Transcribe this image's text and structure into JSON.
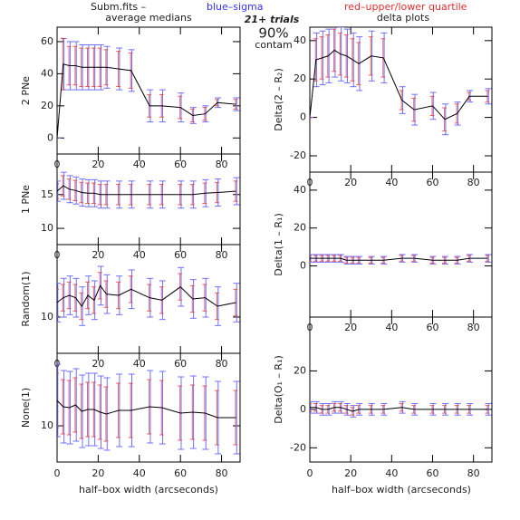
{
  "header": {
    "file": "Subm.fits  –",
    "blue": "blue–sigma",
    "red": "red–upper/lower quartile",
    "left_title": "average medians",
    "right_title": "delta plots",
    "trials": "21+ trials",
    "percent": "90%",
    "contam": "contam",
    "xlabel": "half–box width (arcseconds)"
  },
  "chart_data": [
    {
      "type": "line",
      "ylabel": "2 PNe",
      "x": [
        0,
        3,
        6,
        9,
        12,
        15,
        18,
        21,
        24,
        30,
        36,
        45,
        51,
        60,
        66,
        72,
        78,
        87
      ],
      "values": [
        0,
        46,
        45,
        45,
        44,
        44,
        44,
        44,
        44,
        43,
        42,
        20,
        20,
        19,
        14,
        15,
        22,
        21
      ],
      "sigma": [
        0,
        16,
        15,
        15,
        14,
        14,
        14,
        14,
        13,
        13,
        13,
        10,
        10,
        9,
        5,
        5,
        3,
        4
      ],
      "quartile": [
        0,
        16,
        12,
        12,
        12,
        12,
        12,
        12,
        11,
        11,
        11,
        7,
        7,
        7,
        4,
        4,
        2,
        3
      ],
      "xlim": [
        0,
        89
      ],
      "xticks": [
        0,
        20,
        40,
        60,
        80
      ],
      "ylim": [
        -10,
        69
      ],
      "yticks": [
        0,
        20,
        40,
        60
      ],
      "color": "#000000",
      "sigma_color": "#7070ff",
      "quartile_color": "#e04040"
    },
    {
      "type": "line",
      "ylabel": "1 PNe",
      "x": [
        0,
        3,
        6,
        9,
        12,
        15,
        18,
        21,
        24,
        30,
        36,
        45,
        51,
        60,
        66,
        72,
        78,
        87
      ],
      "values": [
        15.5,
        16.3,
        15.8,
        15.6,
        15.3,
        15.2,
        15.2,
        15.0,
        15.0,
        15.0,
        15.0,
        15.0,
        15.0,
        15.0,
        15.0,
        15.2,
        15.3,
        15.5
      ],
      "sigma": [
        1.5,
        2,
        2,
        2,
        2,
        2,
        2,
        2,
        2,
        2,
        2,
        2,
        2,
        2,
        2,
        2,
        2,
        2
      ],
      "quartile": [
        1.1,
        1.5,
        1.5,
        1.5,
        1.5,
        1.5,
        1.5,
        1.5,
        1.5,
        1.5,
        1.5,
        1.5,
        1.5,
        1.5,
        1.5,
        1.5,
        1.5,
        1.5
      ],
      "xlim": [
        0,
        89
      ],
      "xticks": [
        0,
        20,
        40,
        60,
        80
      ],
      "ylim": [
        7.6,
        21
      ],
      "yticks": [
        10,
        15
      ],
      "color": "#000000",
      "sigma_color": "#7070ff",
      "quartile_color": "#e04040"
    },
    {
      "type": "line",
      "ylabel": "Random(1)",
      "x": [
        0,
        3,
        6,
        9,
        12,
        15,
        18,
        21,
        24,
        30,
        36,
        45,
        51,
        60,
        66,
        72,
        78,
        87
      ],
      "values": [
        11.2,
        11.6,
        11.8,
        11.6,
        10.9,
        11.8,
        11.4,
        12.6,
        11.9,
        11.8,
        12.3,
        11.6,
        11.4,
        12.5,
        11.5,
        11.6,
        10.9,
        11.2
      ],
      "sigma": [
        1.6,
        1.6,
        1.6,
        1.6,
        1.6,
        1.6,
        1.6,
        1.6,
        1.6,
        1.6,
        1.6,
        1.6,
        1.6,
        1.6,
        1.6,
        1.6,
        1.6,
        1.6
      ],
      "quartile": [
        1.1,
        1.1,
        1.1,
        1.1,
        1.1,
        1.1,
        1.1,
        1.1,
        1.1,
        1.1,
        1.1,
        1.1,
        1.1,
        1.1,
        1.1,
        1.1,
        1.1,
        1.1
      ],
      "xlim": [
        0,
        89
      ],
      "xticks": [
        0,
        20,
        40,
        60,
        80
      ],
      "ylim": [
        7,
        16
      ],
      "yticks": [
        10
      ],
      "color": "#000000",
      "sigma_color": "#7070ff",
      "quartile_color": "#e04040"
    },
    {
      "type": "line",
      "ylabel": "None(1)",
      "x": [
        0,
        3,
        6,
        9,
        12,
        15,
        18,
        21,
        24,
        30,
        36,
        45,
        51,
        60,
        66,
        72,
        78,
        87
      ],
      "values": [
        12.8,
        12.1,
        12.0,
        12.3,
        11.6,
        11.8,
        11.8,
        11.5,
        11.3,
        11.7,
        11.7,
        12.1,
        12.0,
        11.4,
        11.5,
        11.4,
        10.9,
        10.9
      ],
      "sigma": [
        4,
        4,
        4,
        4,
        4,
        4,
        4,
        4,
        4,
        4,
        4,
        4,
        4,
        4,
        4,
        4,
        4,
        4
      ],
      "quartile": [
        3,
        3,
        3,
        3,
        3,
        3,
        3,
        3,
        3,
        3,
        3,
        3,
        3,
        3,
        3,
        3,
        3,
        3
      ],
      "xlim": [
        0,
        89
      ],
      "xticks": [
        0,
        20,
        40,
        60,
        80
      ],
      "ylim": [
        6,
        18
      ],
      "yticks": [
        10
      ],
      "color": "#000000",
      "sigma_color": "#7070ff",
      "quartile_color": "#e04040"
    },
    {
      "type": "line",
      "ylabel": "Delta(2 – R₂)",
      "x": [
        0,
        3,
        6,
        9,
        12,
        15,
        18,
        21,
        24,
        30,
        36,
        45,
        51,
        60,
        66,
        72,
        78,
        87
      ],
      "values": [
        0,
        30,
        31,
        32,
        35,
        33,
        32,
        30,
        28,
        32,
        31,
        9,
        4,
        6,
        -1,
        2,
        11,
        11
      ],
      "sigma": [
        0,
        14,
        14,
        14,
        14,
        14,
        14,
        14,
        14,
        13,
        13,
        7,
        8,
        7,
        8,
        6,
        3,
        4
      ],
      "quartile": [
        0,
        11,
        11,
        11,
        11,
        11,
        11,
        11,
        11,
        10,
        10,
        5,
        6,
        5,
        6,
        5,
        2,
        3
      ],
      "xlim": [
        0,
        89
      ],
      "xticks": [
        0,
        20,
        40,
        60,
        80
      ],
      "ylim": [
        -28.5,
        47
      ],
      "yticks": [
        -20,
        0,
        20,
        40
      ],
      "color": "#000000",
      "sigma_color": "#7070ff",
      "quartile_color": "#e04040"
    },
    {
      "type": "line",
      "ylabel": "Delta(1 – R₁)",
      "x": [
        0,
        3,
        6,
        9,
        12,
        15,
        18,
        21,
        24,
        30,
        36,
        45,
        51,
        60,
        66,
        72,
        78,
        87
      ],
      "values": [
        4,
        4,
        4,
        4,
        4,
        4,
        3,
        3,
        3,
        3,
        3,
        4,
        4,
        3,
        3,
        3,
        4,
        4
      ],
      "sigma": [
        2,
        2,
        2,
        2,
        2,
        2,
        2,
        2,
        2,
        2,
        2,
        2,
        2,
        2,
        2,
        2,
        2,
        2
      ],
      "quartile": [
        1.5,
        1.5,
        1.5,
        1.5,
        1.5,
        1.5,
        1.5,
        1.5,
        1.5,
        1.5,
        1.5,
        1.5,
        1.5,
        1.5,
        1.5,
        1.5,
        1.5,
        1.5
      ],
      "xlim": [
        0,
        89
      ],
      "xticks": [
        0,
        20,
        40,
        60,
        80
      ],
      "ylim": [
        -27,
        49.5
      ],
      "yticks": [
        0,
        20,
        40
      ],
      "color": "#000000",
      "sigma_color": "#7070ff",
      "quartile_color": "#e04040"
    },
    {
      "type": "line",
      "ylabel": "Delta(O₁ – R₁)",
      "x": [
        0,
        3,
        6,
        9,
        12,
        15,
        18,
        21,
        24,
        30,
        36,
        45,
        51,
        60,
        66,
        72,
        78,
        87
      ],
      "values": [
        1,
        1,
        0,
        0,
        1,
        1,
        0,
        -1,
        0,
        0,
        0,
        1,
        0,
        0,
        0,
        0,
        0,
        0
      ],
      "sigma": [
        3,
        3,
        3,
        3,
        3,
        3,
        3,
        3,
        3,
        3,
        3,
        3,
        3,
        3,
        3,
        3,
        3,
        3
      ],
      "quartile": [
        2,
        2,
        2,
        2,
        2,
        2,
        2,
        2,
        2,
        2,
        2,
        2,
        2,
        2,
        2,
        2,
        2,
        2
      ],
      "xlim": [
        0,
        89
      ],
      "xticks": [
        0,
        20,
        40,
        60,
        80
      ],
      "ylim": [
        -27.4,
        48
      ],
      "yticks": [
        -20,
        0,
        20
      ],
      "color": "#000000",
      "sigma_color": "#7070ff",
      "quartile_color": "#e04040"
    }
  ]
}
